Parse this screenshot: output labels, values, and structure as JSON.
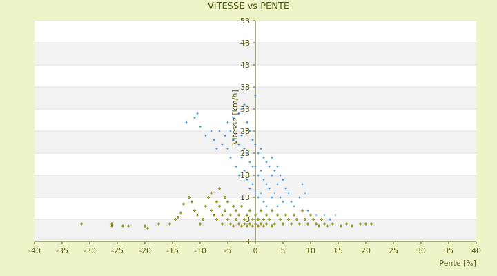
{
  "chart_data": {
    "type": "scatter",
    "title": "VITESSE vs PENTE",
    "xlabel": "Pente [%]",
    "ylabel": "Vitesse [km/h]",
    "xlim": [
      -40,
      40
    ],
    "ylim": [
      3,
      53
    ],
    "xticks": [
      -40,
      -35,
      -30,
      -25,
      -20,
      -15,
      -10,
      -5,
      0,
      5,
      10,
      15,
      20,
      25,
      30,
      35,
      40
    ],
    "yticks": [
      3,
      8,
      13,
      18,
      23,
      28,
      33,
      38,
      43,
      48,
      53
    ],
    "ytick_labels": [
      "3",
      "8",
      "13",
      "18",
      "23",
      "28",
      "33",
      "38",
      "43",
      "48",
      "53"
    ],
    "grid": "horizontal alternating bands",
    "legend": "none",
    "series": [
      {
        "color": "#2e86d9",
        "marker": "plus",
        "points": [
          [
            -12.5,
            30
          ],
          [
            -11,
            31
          ],
          [
            -10.5,
            32
          ],
          [
            -10,
            29
          ],
          [
            -9,
            27
          ],
          [
            -8,
            28
          ],
          [
            -7.5,
            26
          ],
          [
            -7,
            24
          ],
          [
            -6.5,
            28
          ],
          [
            -6,
            25
          ],
          [
            -5.5,
            27
          ],
          [
            -5,
            30
          ],
          [
            -5,
            24
          ],
          [
            -4.5,
            22
          ],
          [
            -4.5,
            28
          ],
          [
            -4,
            31
          ],
          [
            -4,
            26
          ],
          [
            -3.5,
            20
          ],
          [
            -3.5,
            29
          ],
          [
            -3,
            32
          ],
          [
            -3,
            25
          ],
          [
            -3,
            18
          ],
          [
            -2.5,
            33
          ],
          [
            -2.5,
            27
          ],
          [
            -2.5,
            22
          ],
          [
            -2,
            34
          ],
          [
            -2,
            24
          ],
          [
            -2,
            19
          ],
          [
            -1.5,
            30
          ],
          [
            -1.5,
            23
          ],
          [
            -1.5,
            17
          ],
          [
            -1,
            28
          ],
          [
            -1,
            21
          ],
          [
            -1,
            15
          ],
          [
            -0.5,
            26
          ],
          [
            -0.5,
            20
          ],
          [
            -0.5,
            16
          ],
          [
            0,
            36
          ],
          [
            0,
            25
          ],
          [
            0,
            20
          ],
          [
            0,
            14
          ],
          [
            0.5,
            23
          ],
          [
            0.5,
            18
          ],
          [
            0.5,
            13
          ],
          [
            1,
            24
          ],
          [
            1,
            19
          ],
          [
            1,
            14
          ],
          [
            1.5,
            22
          ],
          [
            1.5,
            17
          ],
          [
            1.5,
            12
          ],
          [
            2,
            21
          ],
          [
            2,
            16
          ],
          [
            2,
            11
          ],
          [
            2.5,
            20
          ],
          [
            2.5,
            15
          ],
          [
            3,
            22
          ],
          [
            3,
            18
          ],
          [
            3,
            13
          ],
          [
            3.5,
            19
          ],
          [
            3.5,
            14
          ],
          [
            4,
            20
          ],
          [
            4,
            16
          ],
          [
            4,
            11
          ],
          [
            4.5,
            18
          ],
          [
            4.5,
            13
          ],
          [
            5,
            17
          ],
          [
            5,
            12
          ],
          [
            5.5,
            15
          ],
          [
            6,
            14
          ],
          [
            6.5,
            12
          ],
          [
            7,
            11
          ],
          [
            8,
            13
          ],
          [
            8.5,
            16
          ],
          [
            9,
            14
          ],
          [
            9.5,
            10
          ],
          [
            11,
            9
          ],
          [
            12.5,
            9
          ],
          [
            13.5,
            8
          ],
          [
            14.5,
            9
          ]
        ]
      },
      {
        "color": "#9a9a12",
        "marker": "diamond",
        "points": [
          [
            -31.5,
            7
          ],
          [
            -26,
            6.5
          ],
          [
            -26,
            7
          ],
          [
            -24,
            6.5
          ],
          [
            -23,
            6.5
          ],
          [
            -20,
            6.5
          ],
          [
            -19.5,
            6
          ],
          [
            -17.5,
            7
          ],
          [
            -15.5,
            7
          ],
          [
            -14.5,
            8
          ],
          [
            -14,
            8.5
          ],
          [
            -13.5,
            9.5
          ],
          [
            -13,
            11.5
          ],
          [
            -12,
            13
          ],
          [
            -11.5,
            12
          ],
          [
            -11,
            10
          ],
          [
            -10.5,
            9
          ],
          [
            -10,
            7
          ],
          [
            -9.5,
            8
          ],
          [
            -9,
            11
          ],
          [
            -8.5,
            13
          ],
          [
            -8,
            14
          ],
          [
            -8,
            10
          ],
          [
            -7.5,
            9
          ],
          [
            -7,
            12
          ],
          [
            -7,
            8
          ],
          [
            -6.5,
            15
          ],
          [
            -6.5,
            11
          ],
          [
            -6,
            9
          ],
          [
            -6,
            7
          ],
          [
            -5.5,
            13
          ],
          [
            -5.5,
            10
          ],
          [
            -5,
            8
          ],
          [
            -5,
            12
          ],
          [
            -4.5,
            9
          ],
          [
            -4.5,
            7
          ],
          [
            -4,
            11
          ],
          [
            -4,
            6.5
          ],
          [
            -3.5,
            8
          ],
          [
            -3.5,
            10
          ],
          [
            -3,
            7
          ],
          [
            -3,
            9
          ],
          [
            -2.5,
            6.5
          ],
          [
            -2.5,
            11
          ],
          [
            -2,
            8
          ],
          [
            -2,
            7
          ],
          [
            -1.5,
            9
          ],
          [
            -1.5,
            6.5
          ],
          [
            -1,
            7
          ],
          [
            -1,
            10
          ],
          [
            -0.5,
            8
          ],
          [
            -0.5,
            6.5
          ],
          [
            0,
            7
          ],
          [
            0,
            9
          ],
          [
            0.5,
            6.5
          ],
          [
            0.5,
            8
          ],
          [
            1,
            7
          ],
          [
            1,
            10
          ],
          [
            1.5,
            8
          ],
          [
            1.5,
            6.5
          ],
          [
            2,
            9
          ],
          [
            2,
            7
          ],
          [
            2.5,
            8
          ],
          [
            3,
            6.5
          ],
          [
            3,
            10
          ],
          [
            3.5,
            7
          ],
          [
            4,
            9
          ],
          [
            4.5,
            8
          ],
          [
            5,
            7
          ],
          [
            5.5,
            9
          ],
          [
            6,
            8
          ],
          [
            6.5,
            7
          ],
          [
            7,
            9
          ],
          [
            7.5,
            8
          ],
          [
            8,
            7
          ],
          [
            8.5,
            10
          ],
          [
            9,
            8
          ],
          [
            9.5,
            7
          ],
          [
            10,
            9
          ],
          [
            10.5,
            8
          ],
          [
            11,
            7
          ],
          [
            11.5,
            6.5
          ],
          [
            12,
            8
          ],
          [
            12.5,
            7
          ],
          [
            13,
            6.5
          ],
          [
            14,
            7
          ],
          [
            15.5,
            6.5
          ],
          [
            16.5,
            7
          ],
          [
            17.5,
            6.5
          ],
          [
            19,
            7
          ],
          [
            20,
            7
          ],
          [
            21,
            7
          ]
        ]
      }
    ]
  }
}
